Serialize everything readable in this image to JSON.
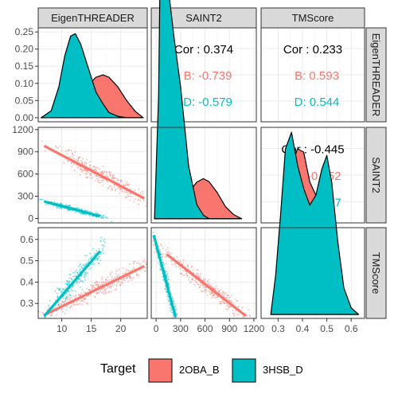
{
  "chart_data": {
    "type": "pair-plot",
    "variables": [
      "EigenTHREADER",
      "SAINT2",
      "TMScore"
    ],
    "axes": {
      "EigenTHREADER": {
        "range": [
          6,
          24.5
        ],
        "ticks": [
          10,
          15,
          20
        ],
        "tick_labels": [
          "10",
          "15",
          "20"
        ]
      },
      "SAINT2": {
        "range": [
          -60,
          1230
        ],
        "ticks": [
          0,
          300,
          600,
          900,
          1200
        ],
        "tick_labels": [
          "0",
          "300",
          "600",
          "900",
          "1200"
        ]
      },
      "TMScore": {
        "range": [
          0.23,
          0.655
        ],
        "ticks": [
          0.3,
          0.4,
          0.5,
          0.6
        ],
        "tick_labels": [
          "0.3",
          "0.4",
          "0.5",
          "0.6"
        ]
      }
    },
    "density_axis": {
      "range": [
        -0.012,
        0.262
      ],
      "ticks": [
        0.0,
        0.05,
        0.1,
        0.15,
        0.2,
        0.25
      ],
      "tick_labels": [
        "0.00",
        "0.05",
        "0.10",
        "0.15",
        "0.20",
        "0.25"
      ]
    },
    "groups": [
      {
        "name": "2OBA_B",
        "color": "#F8766D"
      },
      {
        "name": "3HSB_D",
        "color": "#00BFC4"
      }
    ],
    "correlations": [
      {
        "row": "EigenTHREADER",
        "col": "SAINT2",
        "overall": "Cor : 0.374",
        "group_labels": [
          "B: -0.739",
          "D: -0.579"
        ]
      },
      {
        "row": "EigenTHREADER",
        "col": "TMScore",
        "overall": "Cor : 0.233",
        "group_labels": [
          "B: 0.593",
          "D: 0.544"
        ]
      },
      {
        "row": "SAINT2",
        "col": "TMScore",
        "overall": "Cor : -0.445",
        "group_labels": [
          "B: -0.652",
          "D: -0.757"
        ]
      }
    ],
    "densities": {
      "EigenTHREADER": {
        "x": [
          6.5,
          8.2,
          9.5,
          10.5,
          11.5,
          12.3,
          13.2,
          14.5,
          15.8,
          17,
          18,
          19.5,
          21,
          22.5,
          23.8
        ],
        "2OBA_B": [
          0,
          0,
          0.002,
          0.008,
          0.02,
          0.045,
          0.07,
          0.095,
          0.118,
          0.125,
          0.118,
          0.09,
          0.05,
          0.018,
          0
        ],
        "3HSB_D": [
          0,
          0.02,
          0.09,
          0.18,
          0.238,
          0.245,
          0.215,
          0.145,
          0.075,
          0.04,
          0.015,
          0.004,
          0,
          0,
          0
        ]
      },
      "SAINT2": {
        "x": [
          -20,
          30,
          60,
          90,
          120,
          160,
          220,
          300,
          400,
          500,
          580,
          650,
          750,
          850,
          950,
          1050
        ],
        "2OBA_B": [
          0,
          0,
          0,
          0.001,
          0.002,
          0.004,
          0.01,
          0.035,
          0.075,
          0.105,
          0.115,
          0.106,
          0.075,
          0.035,
          0.012,
          0
        ],
        "3HSB_D": [
          0,
          0.35,
          0.92,
          0.97,
          0.8,
          0.64,
          0.52,
          0.38,
          0.15,
          0.04,
          0.01,
          0,
          0,
          0,
          0,
          0
        ]
      },
      "TMScore": {
        "x": [
          0.27,
          0.29,
          0.31,
          0.33,
          0.355,
          0.38,
          0.405,
          0.43,
          0.455,
          0.48,
          0.5,
          0.52,
          0.545,
          0.57,
          0.6,
          0.63
        ],
        "2OBA_B": [
          0,
          0.1,
          0.25,
          0.4,
          0.45,
          0.5,
          0.49,
          0.4,
          0.36,
          0.38,
          0.4,
          0.3,
          0.16,
          0.05,
          0.02,
          0
        ],
        "3HSB_D": [
          0,
          0.12,
          0.3,
          0.5,
          0.55,
          0.45,
          0.38,
          0.33,
          0.36,
          0.44,
          0.48,
          0.4,
          0.22,
          0.08,
          0.02,
          0
        ]
      }
    },
    "scatter": {
      "2OBA_B": {
        "EigenTHREADER": [
          10,
          23.5
        ],
        "SAINT2": [
          150,
          1050
        ],
        "TMScore": [
          0.26,
          0.55
        ]
      },
      "3HSB_D": {
        "EigenTHREADER": [
          8,
          16.5
        ],
        "SAINT2": [
          10,
          260
        ],
        "TMScore": [
          0.24,
          0.62
        ]
      }
    },
    "fit_lines": {
      "EigenTHREADER|SAINT2": {
        "2OBA_B": [
          [
            7,
            980
          ],
          [
            24,
            270
          ]
        ],
        "3HSB_D": [
          [
            7,
            230
          ],
          [
            16.5,
            30
          ]
        ]
      },
      "EigenTHREADER|TMScore": {
        "2OBA_B": [
          [
            7,
            0.245
          ],
          [
            24,
            0.475
          ]
        ],
        "3HSB_D": [
          [
            7,
            0.24
          ],
          [
            16.5,
            0.545
          ]
        ]
      },
      "SAINT2|TMScore": {
        "2OBA_B": [
          [
            130,
            0.53
          ],
          [
            1100,
            0.242
          ]
        ],
        "3HSB_D": [
          [
            -30,
            0.62
          ],
          [
            240,
            0.235
          ]
        ]
      }
    },
    "legend": {
      "title": "Target",
      "position": "bottom"
    },
    "grid": true
  }
}
